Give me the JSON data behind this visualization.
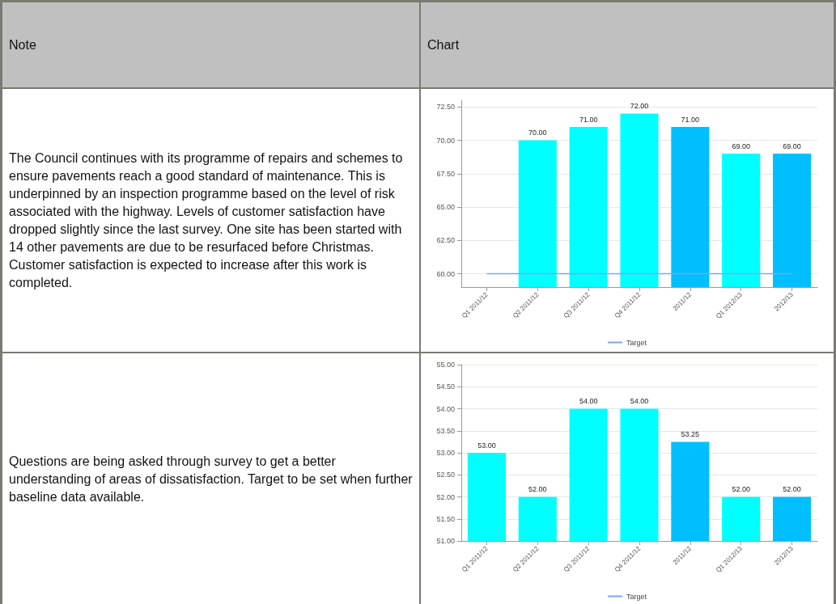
{
  "chart_data": [
    {
      "type": "other",
      "title": "Note"
    },
    {
      "type": "other",
      "title": "Chart"
    },
    {
      "type": "other",
      "annotations": [
        "The Council continues with its programme of repairs and schemes to ensure pavements reach a good standard of maintenance. This is underpinned by an inspection programme based on the level of risk associated with the highway.  Levels of customer satisfaction have dropped slightly since the last survey.  One site has been started with 14 other pavements are due to be resurfaced before Christmas. Customer satisfaction is expected to increase after this work is completed."
      ]
    },
    {
      "type": "bar",
      "categories": [
        "Q1 2011/12",
        "Q2 2011/12",
        "Q3 2011/12",
        "Q4 2011/12",
        "2011/12",
        "Q1 2012/13",
        "2012/13"
      ],
      "series": [
        {
          "values": [
            null,
            70,
            71,
            72,
            71,
            69,
            69
          ],
          "colors": [
            "#00ffff",
            "#00ffff",
            "#00ffff",
            "#00ffff",
            "#00bfff",
            "#00ffff",
            "#00bfff"
          ],
          "value_labels": [
            null,
            "70.00",
            "71.00",
            "72.00",
            "71.00",
            "69.00",
            "69.00"
          ]
        },
        {
          "type": "line",
          "name": "Target",
          "color": "#7fa3f5",
          "values": [
            60,
            60,
            60,
            60,
            60,
            60,
            60
          ]
        }
      ],
      "ylim": [
        59,
        73
      ],
      "yticks": [
        {
          "value": 60,
          "label": "60.00"
        },
        {
          "value": 62.5,
          "label": "62.50"
        },
        {
          "value": 65,
          "label": "65.00"
        },
        {
          "value": 67.5,
          "label": "67.50"
        },
        {
          "value": 70,
          "label": "70.00"
        },
        {
          "value": 72.5,
          "label": "72.50"
        }
      ],
      "grid": "y",
      "legend": "bottom",
      "marker": "none"
    },
    {
      "type": "other",
      "annotations": [
        "Questions are being asked through survey to get a better understanding of areas of dissatisfaction.  Target to be set when further baseline data available."
      ]
    },
    {
      "type": "bar",
      "categories": [
        "Q1 2011/12",
        "Q2 2011/12",
        "Q3 2011/12",
        "Q4 2011/12",
        "2011/12",
        "Q1 2012/13",
        "2012/13"
      ],
      "series": [
        {
          "values": [
            53,
            52,
            54,
            54,
            53.25,
            52,
            52
          ],
          "colors": [
            "#00ffff",
            "#00ffff",
            "#00ffff",
            "#00ffff",
            "#00bfff",
            "#00ffff",
            "#00bfff"
          ],
          "value_labels": [
            "53.00",
            "52.00",
            "54.00",
            "54.00",
            "53.25",
            "52.00",
            "52.00"
          ]
        },
        {
          "type": "line",
          "name": "Target",
          "color": "#7fa3f5",
          "values": [
            null,
            null,
            null,
            null,
            null,
            null,
            null
          ]
        }
      ],
      "ylim": [
        51,
        55
      ],
      "yticks": [
        {
          "value": 51,
          "label": "51.00"
        },
        {
          "value": 51.5,
          "label": "51.50"
        },
        {
          "value": 52,
          "label": "52.00"
        },
        {
          "value": 52.5,
          "label": "52.50"
        },
        {
          "value": 53,
          "label": "53.00"
        },
        {
          "value": 53.5,
          "label": "53.50"
        },
        {
          "value": 54,
          "label": "54.00"
        },
        {
          "value": 54.5,
          "label": "54.50"
        },
        {
          "value": 55,
          "label": "55.00"
        }
      ],
      "grid": "y",
      "legend": "bottom",
      "marker": "none"
    }
  ]
}
